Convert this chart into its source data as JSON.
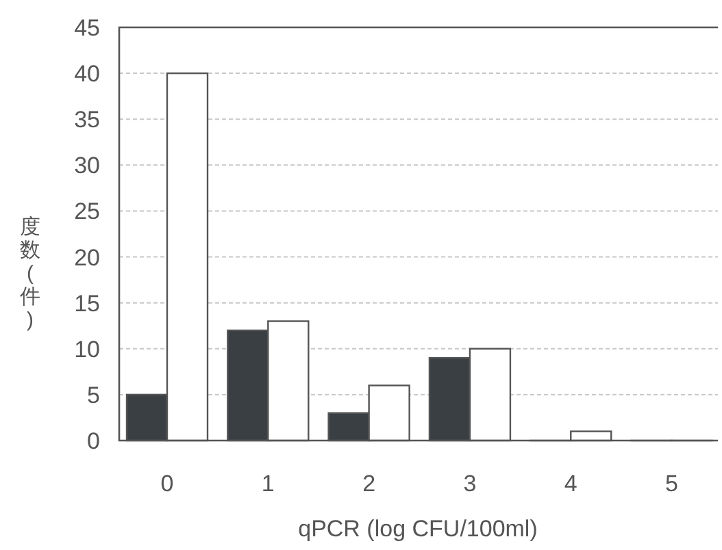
{
  "chart_data": {
    "type": "bar",
    "xlabel": "qPCR (log CFU/100ml)",
    "ylabel": "度数(件)",
    "categories": [
      "0",
      "1",
      "2",
      "3",
      "4",
      "5"
    ],
    "series": [
      {
        "color": "#3a3f44",
        "values": [
          5,
          12,
          3,
          9,
          0,
          0
        ]
      },
      {
        "color": "#ffffff",
        "values": [
          40,
          13,
          6,
          10,
          1,
          0
        ]
      }
    ],
    "ylim": [
      0,
      45
    ],
    "yticks": [
      0,
      5,
      10,
      15,
      20,
      25,
      30,
      35,
      40,
      45
    ],
    "grid": "y"
  }
}
